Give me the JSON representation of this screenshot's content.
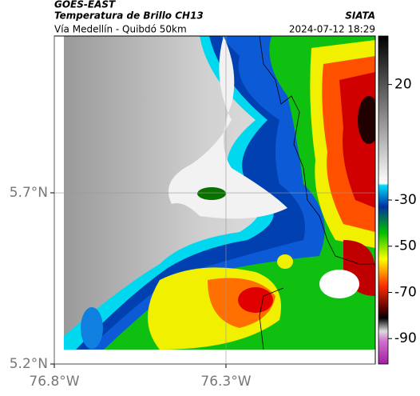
{
  "header": {
    "satellite": "GOES-EAST",
    "product": "Temperatura de Brillo CH13",
    "agency": "SIATA",
    "region": "Vía Medellín - Quibdó 50km",
    "timestamp": "2024-07-12 18:29"
  },
  "map": {
    "xlim": [
      -76.8,
      -75.865
    ],
    "ylim": [
      5.2,
      6.158
    ],
    "xticks": [
      {
        "value": -76.8,
        "label": "76.8°W"
      },
      {
        "value": -76.3,
        "label": "76.3°W"
      }
    ],
    "yticks": [
      {
        "value": 5.2,
        "label": "5.2°N"
      },
      {
        "value": 5.7,
        "label": "5.7°N"
      }
    ],
    "grid": true
  },
  "colorbar": {
    "lim": [
      -101,
      41
    ],
    "ticks": [
      20,
      -30,
      -50,
      -70,
      -90
    ]
  }
}
